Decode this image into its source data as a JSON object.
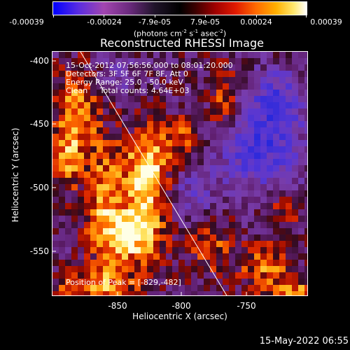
{
  "colorbar": {
    "tick_labels": [
      "-0.00039",
      "-0.00024",
      "-7.9e-05",
      "7.9e-05",
      "0.00024",
      "0.00039"
    ],
    "units_prefix": "(photons cm",
    "units_exp1": "-2",
    "units_mid1": " s",
    "units_exp2": "-1",
    "units_mid2": " asec",
    "units_exp3": "-2",
    "units_suffix": ")"
  },
  "title": "Reconstructed RHESSI Image",
  "info": {
    "line1": "15-Oct-2012 07:56:56.000 to 08:01:20.000",
    "line2": "Detectors: 3F 5F 6F 7F 8F, Att 0",
    "line3": "Energy Range: 25.0 - 50.0 keV",
    "line4": "Clean     Total counts: 4.64E+03",
    "peak": "Position of Peak = [-829,-482]"
  },
  "axes": {
    "xlabel": "Heliocentric X (arcsec)",
    "ylabel": "Heliocentric Y (arcsec)",
    "x_ticks": [
      "-850",
      "-800",
      "-750"
    ],
    "y_ticks": [
      "-400",
      "-450",
      "-500",
      "-550"
    ],
    "xlim": [
      -903,
      -713
    ],
    "ylim": [
      -586,
      -393
    ]
  },
  "timestamp": "15-May-2022 06:55",
  "colors": {
    "background": "#000000",
    "foreground": "#ffffff",
    "colormap": [
      "#0000ff",
      "#5a2ce0",
      "#a246b0",
      "#6b2a7e",
      "#000000",
      "#a00000",
      "#e01a00",
      "#ff6a00",
      "#ffb000",
      "#ffe870",
      "#ffffff"
    ]
  }
}
